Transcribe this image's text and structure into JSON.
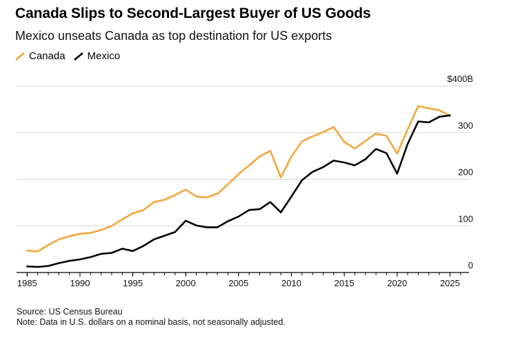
{
  "chart_data": {
    "type": "line",
    "title": "Canada Slips to Second-Largest Buyer of US Goods",
    "subtitle": "Mexico unseats Canada as top destination for US exports",
    "xlabel": "",
    "ylabel": "",
    "x": [
      1985,
      1986,
      1987,
      1988,
      1989,
      1990,
      1991,
      1992,
      1993,
      1994,
      1995,
      1996,
      1997,
      1998,
      1999,
      2000,
      2001,
      2002,
      2003,
      2004,
      2005,
      2006,
      2007,
      2008,
      2009,
      2010,
      2011,
      2012,
      2013,
      2014,
      2015,
      2016,
      2017,
      2018,
      2019,
      2020,
      2021,
      2022,
      2023,
      2024,
      2025
    ],
    "xlim": [
      1984.0,
      2026.8
    ],
    "ylim": [
      0,
      400
    ],
    "x_ticks": [
      "1985",
      "1990",
      "1995",
      "2000",
      "2005",
      "2010",
      "2015",
      "2020",
      "2025"
    ],
    "x_tick_values": [
      1985,
      1990,
      1995,
      2000,
      2005,
      2010,
      2015,
      2020,
      2025
    ],
    "y_ticks": [
      "$400B",
      "300",
      "200",
      "100",
      "0"
    ],
    "y_tick_values": [
      400,
      300,
      200,
      100,
      0
    ],
    "grid": "horizontal",
    "legend_position": "top-left",
    "series": [
      {
        "name": "Canada",
        "color": "#f4a63a",
        "values": [
          47,
          45,
          59,
          71,
          78,
          83,
          85,
          91,
          100,
          114,
          127,
          134,
          151,
          156,
          166,
          178,
          163,
          161,
          169,
          189,
          211,
          230,
          249,
          261,
          204,
          249,
          281,
          292,
          301,
          312,
          280,
          266,
          282,
          298,
          293,
          255,
          307,
          357,
          352,
          348,
          336
        ]
      },
      {
        "name": "Mexico",
        "color": "#000000",
        "values": [
          13,
          12,
          14,
          20,
          25,
          28,
          33,
          40,
          42,
          51,
          46,
          57,
          71,
          79,
          87,
          111,
          101,
          97,
          97,
          110,
          120,
          134,
          136,
          151,
          129,
          163,
          198,
          216,
          226,
          240,
          236,
          230,
          243,
          265,
          256,
          212,
          276,
          324,
          322,
          334,
          337
        ]
      }
    ]
  },
  "legend": {
    "canada": "Canada",
    "mexico": "Mexico"
  },
  "footer": {
    "source": "Source: US Census Bureau",
    "note": "Note: Data in U.S. dollars on a nominal basis, not seasonally adjusted."
  }
}
